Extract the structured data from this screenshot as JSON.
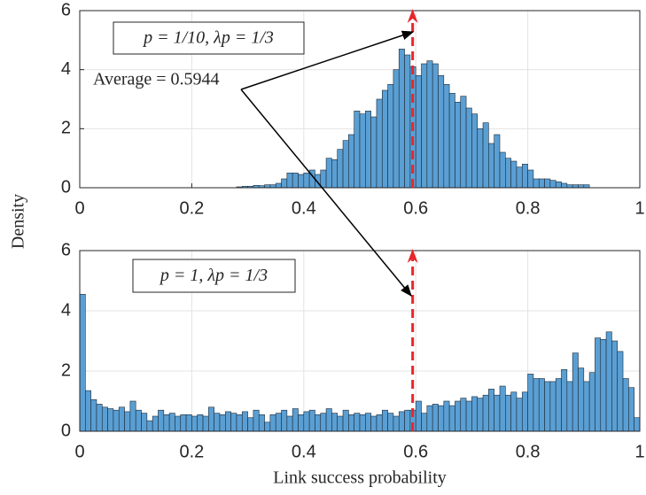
{
  "chart_data": [
    {
      "type": "histogram",
      "ylabel": "Density",
      "annotation": "p = 1/10, λp = 1/3",
      "average_label": "Average = 0.5944",
      "average": 0.5944,
      "average_color": "#e8262a",
      "color": "#5a9fd4",
      "bins": [
        0.28,
        0.29,
        0.3,
        0.31,
        0.32,
        0.33,
        0.34,
        0.35,
        0.36,
        0.37,
        0.38,
        0.39,
        0.4,
        0.41,
        0.42,
        0.43,
        0.44,
        0.45,
        0.46,
        0.47,
        0.48,
        0.49,
        0.5,
        0.51,
        0.52,
        0.53,
        0.54,
        0.55,
        0.56,
        0.57,
        0.58,
        0.59,
        0.6,
        0.61,
        0.62,
        0.63,
        0.64,
        0.65,
        0.66,
        0.67,
        0.68,
        0.69,
        0.7,
        0.71,
        0.72,
        0.73,
        0.74,
        0.75,
        0.76,
        0.77,
        0.78,
        0.79,
        0.8,
        0.81,
        0.82,
        0.83,
        0.84,
        0.85,
        0.86,
        0.87,
        0.88,
        0.89,
        0.9,
        0.91
      ],
      "values": [
        0.03,
        0.05,
        0.05,
        0.08,
        0.07,
        0.1,
        0.1,
        0.15,
        0.3,
        0.5,
        0.5,
        0.45,
        0.5,
        0.6,
        0.45,
        0.6,
        1.0,
        0.95,
        1.3,
        1.6,
        1.8,
        2.6,
        2.5,
        2.6,
        2.4,
        3.0,
        3.3,
        3.5,
        4.0,
        4.7,
        4.5,
        4.1,
        3.8,
        4.2,
        4.3,
        4.2,
        3.8,
        3.5,
        3.2,
        2.9,
        3.1,
        2.7,
        2.5,
        2.0,
        2.2,
        1.5,
        1.8,
        1.2,
        1.0,
        0.9,
        0.7,
        0.8,
        0.6,
        0.3,
        0.3,
        0.3,
        0.25,
        0.2,
        0.15,
        0.1,
        0.1,
        0.1,
        0.1
      ],
      "xlim": [
        0,
        1
      ],
      "xticks": [
        0,
        0.2,
        0.4,
        0.6,
        0.8,
        1
      ],
      "ylim": [
        0,
        6
      ],
      "yticks": [
        0,
        2,
        4,
        6
      ],
      "grid": true
    },
    {
      "type": "histogram",
      "xlabel": "Link success probability",
      "annotation": "p = 1, λp = 1/3",
      "average": 0.5944,
      "average_color": "#e8262a",
      "color": "#5a9fd4",
      "bins": [
        0,
        0.01,
        0.02,
        0.03,
        0.04,
        0.05,
        0.06,
        0.07,
        0.08,
        0.09,
        0.1,
        0.11,
        0.12,
        0.13,
        0.14,
        0.15,
        0.16,
        0.17,
        0.18,
        0.19,
        0.2,
        0.21,
        0.22,
        0.23,
        0.24,
        0.25,
        0.26,
        0.27,
        0.28,
        0.29,
        0.3,
        0.31,
        0.32,
        0.33,
        0.34,
        0.35,
        0.36,
        0.37,
        0.38,
        0.39,
        0.4,
        0.41,
        0.42,
        0.43,
        0.44,
        0.45,
        0.46,
        0.47,
        0.48,
        0.49,
        0.5,
        0.51,
        0.52,
        0.53,
        0.54,
        0.55,
        0.56,
        0.57,
        0.58,
        0.59,
        0.6,
        0.61,
        0.62,
        0.63,
        0.64,
        0.65,
        0.66,
        0.67,
        0.68,
        0.69,
        0.7,
        0.71,
        0.72,
        0.73,
        0.74,
        0.75,
        0.76,
        0.77,
        0.78,
        0.79,
        0.8,
        0.81,
        0.82,
        0.83,
        0.84,
        0.85,
        0.86,
        0.87,
        0.88,
        0.89,
        0.9,
        0.91,
        0.92,
        0.93,
        0.94,
        0.95,
        0.96,
        0.97,
        0.98,
        0.99,
        1
      ],
      "values": [
        4.55,
        1.35,
        1.05,
        0.9,
        0.8,
        0.75,
        0.7,
        0.8,
        0.65,
        1.0,
        0.7,
        0.6,
        0.35,
        0.5,
        0.7,
        0.55,
        0.6,
        0.5,
        0.55,
        0.55,
        0.5,
        0.55,
        0.5,
        0.8,
        0.6,
        0.55,
        0.65,
        0.6,
        0.55,
        0.65,
        0.45,
        0.7,
        0.55,
        0.3,
        0.55,
        0.6,
        0.7,
        0.5,
        0.75,
        0.55,
        0.65,
        0.7,
        0.55,
        0.6,
        0.75,
        0.6,
        0.5,
        0.7,
        0.55,
        0.6,
        0.55,
        0.6,
        0.5,
        0.55,
        0.7,
        0.6,
        0.5,
        0.65,
        0.7,
        0.7,
        1.0,
        0.6,
        0.85,
        0.9,
        0.85,
        1.0,
        0.85,
        1.0,
        1.1,
        1.0,
        1.15,
        1.1,
        1.2,
        1.4,
        1.2,
        1.5,
        1.2,
        1.3,
        1.1,
        1.3,
        1.9,
        1.75,
        1.75,
        1.65,
        1.65,
        1.75,
        2.05,
        1.65,
        2.6,
        2.1,
        1.65,
        1.95,
        3.1,
        3.05,
        3.3,
        3.0,
        2.65,
        1.75,
        1.45,
        0.45
      ],
      "xlim": [
        0,
        1
      ],
      "xticks": [
        0,
        0.2,
        0.4,
        0.6,
        0.8,
        1
      ],
      "ylim": [
        0,
        6
      ],
      "yticks": [
        0,
        2,
        4,
        6
      ],
      "grid": true
    }
  ]
}
